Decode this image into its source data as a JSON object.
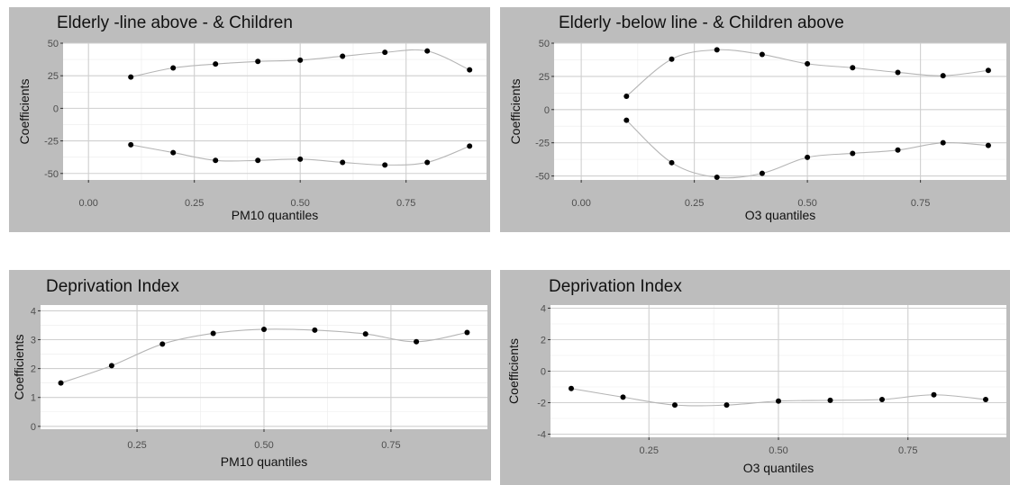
{
  "chart_data": [
    {
      "type": "line",
      "title": "Elderly -line above - & Children",
      "xlabel": "PM10 quantiles",
      "ylabel": "Coefficients",
      "xlim": [
        -0.06,
        0.94
      ],
      "ylim": [
        -55,
        50
      ],
      "x_ticks": [
        "0.00",
        "0.25",
        "0.50",
        "0.75"
      ],
      "x_tick_values": [
        0,
        0.25,
        0.5,
        0.75
      ],
      "y_ticks": [
        "50",
        "25",
        "0",
        "-25",
        "-50"
      ],
      "y_tick_values": [
        50,
        25,
        0,
        -25,
        -50
      ],
      "grid": true,
      "x": [
        0.1,
        0.2,
        0.3,
        0.4,
        0.5,
        0.6,
        0.7,
        0.8,
        0.9
      ],
      "series": [
        {
          "values": [
            24,
            31,
            34,
            36,
            37,
            40,
            43,
            44,
            29.5
          ]
        },
        {
          "values": [
            -28,
            -34,
            -40,
            -40,
            -39,
            -41.5,
            -43.5,
            -41.5,
            -29
          ]
        }
      ]
    },
    {
      "type": "line",
      "title": "Elderly -below line - & Children above",
      "xlabel": "O3 quantiles",
      "ylabel": "Coefficients",
      "xlim": [
        -0.06,
        0.94
      ],
      "ylim": [
        -53,
        50
      ],
      "x_ticks": [
        "0.00",
        "0.25",
        "0.50",
        "0.75"
      ],
      "x_tick_values": [
        0,
        0.25,
        0.5,
        0.75
      ],
      "y_ticks": [
        "50",
        "25",
        "0",
        "-25",
        "-50"
      ],
      "y_tick_values": [
        50,
        25,
        0,
        -25,
        -50
      ],
      "grid": true,
      "x": [
        0.1,
        0.2,
        0.3,
        0.4,
        0.5,
        0.6,
        0.7,
        0.8,
        0.9
      ],
      "series": [
        {
          "values": [
            10,
            38,
            45,
            41.5,
            34.5,
            31.5,
            28,
            25.5,
            29.5
          ]
        },
        {
          "values": [
            -8,
            -40,
            -51,
            -48,
            -36,
            -33,
            -30.5,
            -25,
            -27
          ]
        }
      ]
    },
    {
      "type": "line",
      "title": "Deprivation Index",
      "xlabel": "PM10 quantiles",
      "ylabel": "Coefficients",
      "xlim": [
        0.06,
        0.94
      ],
      "ylim": [
        -0.1,
        4.2
      ],
      "x_ticks": [
        "0.25",
        "0.50",
        "0.75"
      ],
      "x_tick_values": [
        0.25,
        0.5,
        0.75
      ],
      "y_ticks": [
        "4",
        "3",
        "2",
        "1",
        "0"
      ],
      "y_tick_values": [
        4,
        3,
        2,
        1,
        0
      ],
      "grid": true,
      "x": [
        0.1,
        0.2,
        0.3,
        0.4,
        0.5,
        0.6,
        0.7,
        0.8,
        0.9
      ],
      "series": [
        {
          "values": [
            1.5,
            2.1,
            2.85,
            3.22,
            3.36,
            3.33,
            3.2,
            2.93,
            3.25
          ]
        }
      ]
    },
    {
      "type": "line",
      "title": "Deprivation Index",
      "xlabel": "O3 quantiles",
      "ylabel": "Coefficients",
      "xlim": [
        0.06,
        0.94
      ],
      "ylim": [
        -4.2,
        4.2
      ],
      "x_ticks": [
        "0.25",
        "0.50",
        "0.75"
      ],
      "x_tick_values": [
        0.25,
        0.5,
        0.75
      ],
      "y_ticks": [
        "4",
        "2",
        "0",
        "-2",
        "-4"
      ],
      "y_tick_values": [
        4,
        2,
        0,
        -2,
        -4
      ],
      "grid": true,
      "x": [
        0.1,
        0.2,
        0.3,
        0.4,
        0.5,
        0.6,
        0.7,
        0.8,
        0.9
      ],
      "series": [
        {
          "values": [
            -1.1,
            -1.65,
            -2.15,
            -2.15,
            -1.9,
            -1.85,
            -1.8,
            -1.5,
            -1.8
          ]
        }
      ]
    }
  ]
}
